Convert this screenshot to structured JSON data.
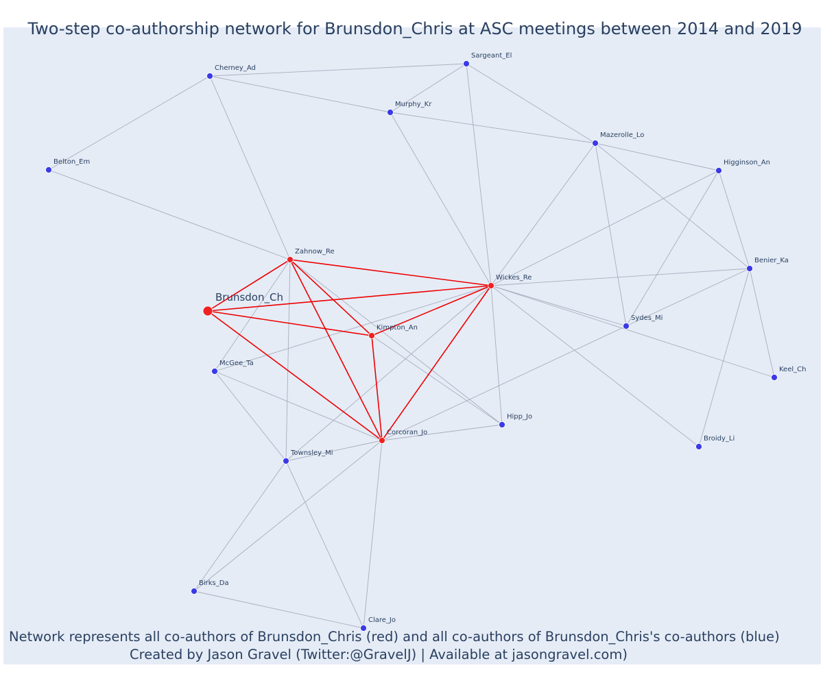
{
  "title": "Two-step co-authorship network for Brunsdon_Chris at ASC meetings between 2014 and 2019",
  "footer": {
    "line1": "Network represents all co-authors of Brunsdon_Chris (red) and all co-authors of Brunsdon_Chris's co-authors (blue)",
    "line2": "Created by Jason Gravel (Twitter:@GravelJ) | Available at jasongravel.com)"
  },
  "colors": {
    "background": "#e5ecf6",
    "direct_node": "#ee2222",
    "indirect_node": "#3a3ae6",
    "direct_edge": "#ee0000",
    "indirect_edge": "#a9adbd",
    "text": "#2a3f5f"
  },
  "network": {
    "ego": "Brunsdon_Ch",
    "nodes": [
      {
        "id": "Brunsdon_Ch",
        "group": "ego"
      },
      {
        "id": "Zahnow_Re",
        "group": "direct"
      },
      {
        "id": "Wickes_Re",
        "group": "direct"
      },
      {
        "id": "Kimpton_An",
        "group": "direct"
      },
      {
        "id": "Corcoran_Jo",
        "group": "direct"
      },
      {
        "id": "Cherney_Ad",
        "group": "indirect"
      },
      {
        "id": "Sargeant_El",
        "group": "indirect"
      },
      {
        "id": "Murphy_Kr",
        "group": "indirect"
      },
      {
        "id": "Mazerolle_Lo",
        "group": "indirect"
      },
      {
        "id": "Higginson_An",
        "group": "indirect"
      },
      {
        "id": "Belton_Em",
        "group": "indirect"
      },
      {
        "id": "Benier_Ka",
        "group": "indirect"
      },
      {
        "id": "Sydes_Mi",
        "group": "indirect"
      },
      {
        "id": "Keel_Ch",
        "group": "indirect"
      },
      {
        "id": "McGee_Ta",
        "group": "indirect"
      },
      {
        "id": "Hipp_Jo",
        "group": "indirect"
      },
      {
        "id": "Townsley_Mi",
        "group": "indirect"
      },
      {
        "id": "Broidy_Li",
        "group": "indirect"
      },
      {
        "id": "Birks_Da",
        "group": "indirect"
      },
      {
        "id": "Clare_Jo",
        "group": "indirect"
      }
    ],
    "direct_edges": [
      [
        "Brunsdon_Ch",
        "Zahnow_Re"
      ],
      [
        "Brunsdon_Ch",
        "Wickes_Re"
      ],
      [
        "Brunsdon_Ch",
        "Kimpton_An"
      ],
      [
        "Brunsdon_Ch",
        "Corcoran_Jo"
      ],
      [
        "Zahnow_Re",
        "Wickes_Re"
      ],
      [
        "Zahnow_Re",
        "Kimpton_An"
      ],
      [
        "Zahnow_Re",
        "Corcoran_Jo"
      ],
      [
        "Wickes_Re",
        "Kimpton_An"
      ],
      [
        "Wickes_Re",
        "Corcoran_Jo"
      ],
      [
        "Kimpton_An",
        "Corcoran_Jo"
      ]
    ],
    "indirect_edges": [
      [
        "Cherney_Ad",
        "Sargeant_El"
      ],
      [
        "Cherney_Ad",
        "Murphy_Kr"
      ],
      [
        "Cherney_Ad",
        "Belton_Em"
      ],
      [
        "Cherney_Ad",
        "Zahnow_Re"
      ],
      [
        "Sargeant_El",
        "Murphy_Kr"
      ],
      [
        "Sargeant_El",
        "Mazerolle_Lo"
      ],
      [
        "Sargeant_El",
        "Wickes_Re"
      ],
      [
        "Murphy_Kr",
        "Mazerolle_Lo"
      ],
      [
        "Murphy_Kr",
        "Wickes_Re"
      ],
      [
        "Belton_Em",
        "Zahnow_Re"
      ],
      [
        "Mazerolle_Lo",
        "Higginson_An"
      ],
      [
        "Mazerolle_Lo",
        "Benier_Ka"
      ],
      [
        "Mazerolle_Lo",
        "Sydes_Mi"
      ],
      [
        "Mazerolle_Lo",
        "Wickes_Re"
      ],
      [
        "Higginson_An",
        "Benier_Ka"
      ],
      [
        "Higginson_An",
        "Sydes_Mi"
      ],
      [
        "Higginson_An",
        "Wickes_Re"
      ],
      [
        "Benier_Ka",
        "Keel_Ch"
      ],
      [
        "Benier_Ka",
        "Broidy_Li"
      ],
      [
        "Benier_Ka",
        "Sydes_Mi"
      ],
      [
        "Benier_Ka",
        "Wickes_Re"
      ],
      [
        "Wickes_Re",
        "Sydes_Mi"
      ],
      [
        "Wickes_Re",
        "Keel_Ch"
      ],
      [
        "Wickes_Re",
        "Broidy_Li"
      ],
      [
        "Wickes_Re",
        "Hipp_Jo"
      ],
      [
        "Wickes_Re",
        "McGee_Ta"
      ],
      [
        "Wickes_Re",
        "Townsley_Mi"
      ],
      [
        "Sydes_Mi",
        "Corcoran_Jo"
      ],
      [
        "Zahnow_Re",
        "McGee_Ta"
      ],
      [
        "Zahnow_Re",
        "Townsley_Mi"
      ],
      [
        "Zahnow_Re",
        "Hipp_Jo"
      ],
      [
        "Kimpton_An",
        "Hipp_Jo"
      ],
      [
        "McGee_Ta",
        "Corcoran_Jo"
      ],
      [
        "McGee_Ta",
        "Townsley_Mi"
      ],
      [
        "Townsley_Mi",
        "Corcoran_Jo"
      ],
      [
        "Townsley_Mi",
        "Birks_Da"
      ],
      [
        "Townsley_Mi",
        "Clare_Jo"
      ],
      [
        "Corcoran_Jo",
        "Hipp_Jo"
      ],
      [
        "Corcoran_Jo",
        "Birks_Da"
      ],
      [
        "Corcoran_Jo",
        "Clare_Jo"
      ],
      [
        "Birks_Da",
        "Clare_Jo"
      ]
    ]
  }
}
